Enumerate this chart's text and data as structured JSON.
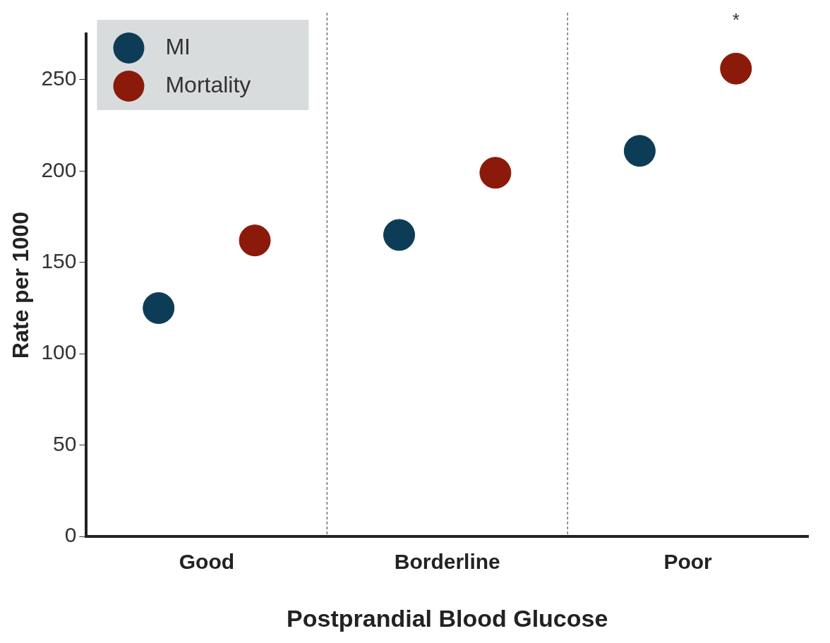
{
  "chart_data": {
    "type": "scatter",
    "xlabel": "Postprandial Blood Glucose",
    "ylabel": "Rate per 1000",
    "categories": [
      "Good",
      "Borderline",
      "Poor"
    ],
    "series": [
      {
        "name": "MI",
        "color": "#0d3d56",
        "values": [
          125,
          165,
          211
        ]
      },
      {
        "name": "Mortality",
        "color": "#8b1a0a",
        "values": [
          162,
          199,
          256
        ]
      }
    ],
    "ylim": [
      0,
      275
    ],
    "yticks": [
      0,
      50,
      100,
      150,
      200,
      250
    ],
    "grid": "x",
    "legend": "top left",
    "marker": "circle",
    "annotations": [
      "*"
    ]
  }
}
